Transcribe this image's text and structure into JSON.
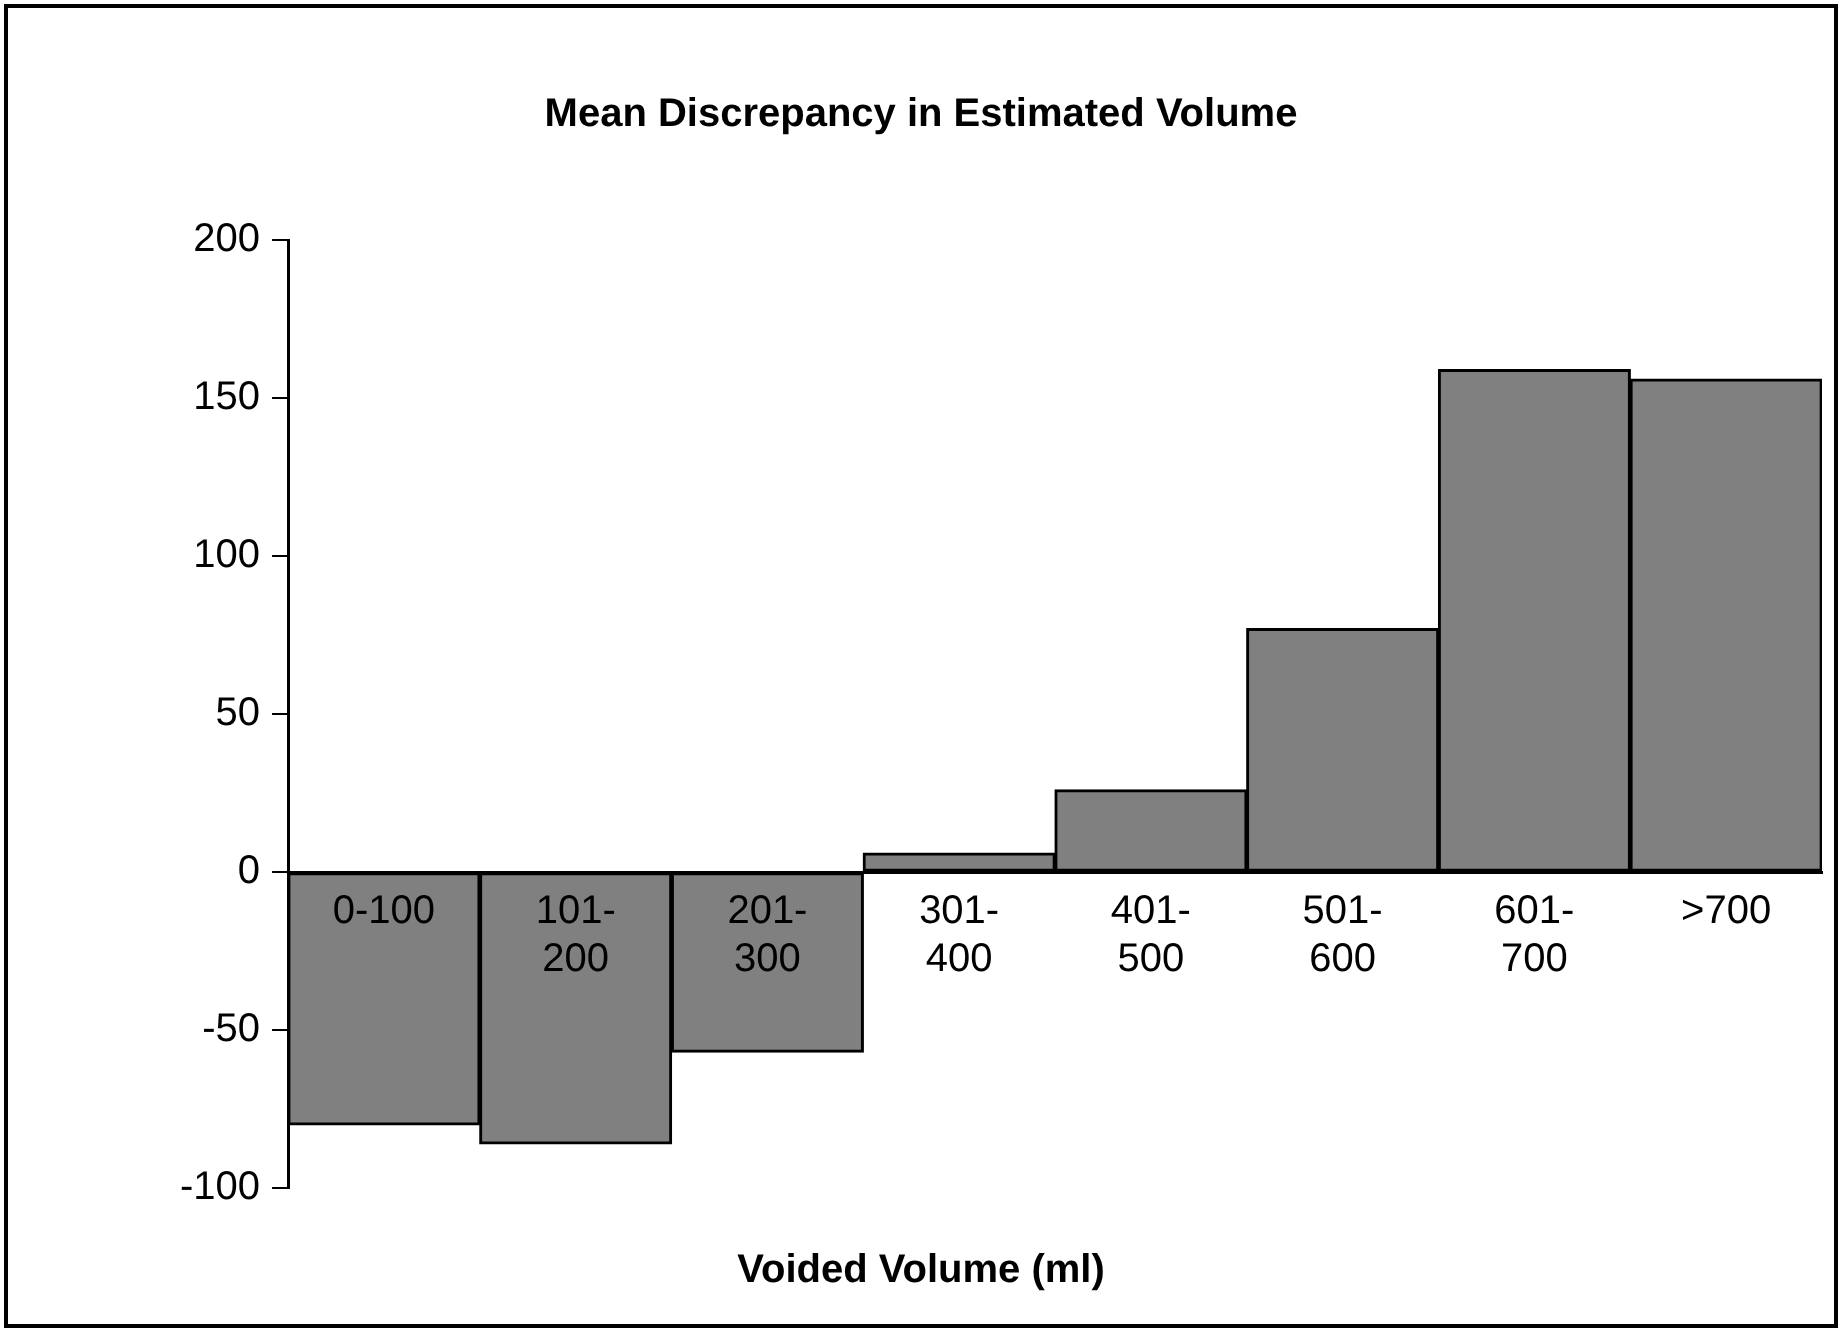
{
  "chart_data": {
    "type": "bar",
    "title": "Mean Discrepancy in Estimated Volume",
    "xlabel": "Voided Volume (ml)",
    "categories": [
      "0-100",
      "101-200",
      "201-300",
      "301-400",
      "401-500",
      "501-600",
      "601-700",
      ">700"
    ],
    "values": [
      -80,
      -86,
      -57,
      6,
      26,
      77,
      159,
      156
    ],
    "color": "#808080",
    "ylim": [
      -100,
      200
    ],
    "yticks": [
      -100,
      -50,
      0,
      50,
      100,
      150,
      200
    ],
    "grid": false,
    "legend": false
  }
}
